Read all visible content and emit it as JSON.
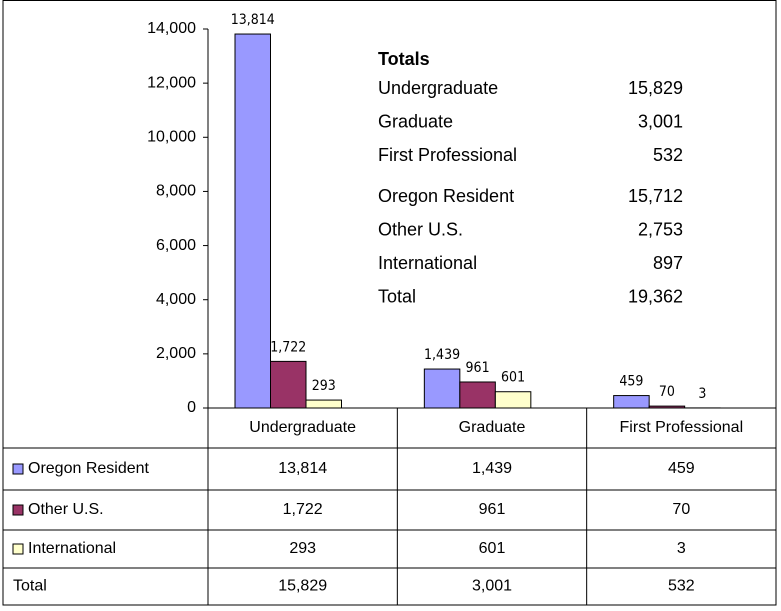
{
  "chart_data": {
    "type": "bar",
    "categories": [
      "Undergraduate",
      "Graduate",
      "First Professional"
    ],
    "series": [
      {
        "name": "Oregon Resident",
        "color": "#9999ff",
        "values": [
          13814,
          1439,
          459
        ],
        "value_labels": [
          "13,814",
          "1,439",
          "459"
        ]
      },
      {
        "name": "Other U.S.",
        "color": "#993366",
        "values": [
          1722,
          961,
          70
        ],
        "value_labels": [
          "1,722",
          "961",
          "70"
        ]
      },
      {
        "name": "International",
        "color": "#ffffcc",
        "values": [
          293,
          601,
          3
        ],
        "value_labels": [
          "293",
          "601",
          "3"
        ]
      }
    ],
    "totals_row": {
      "label": "Total",
      "values": [
        15829,
        3001,
        532
      ],
      "value_labels": [
        "15,829",
        "3,001",
        "532"
      ]
    },
    "ylim": [
      0,
      14000
    ],
    "yticks": [
      0,
      {
        "value": 2000,
        "label": "2,000"
      },
      {
        "value": 4000,
        "label": "4,000"
      },
      {
        "value": 6000,
        "label": "6,000"
      },
      {
        "value": 8000,
        "label": "8,000"
      },
      {
        "value": 10000,
        "label": "10,000"
      },
      {
        "value": 12000,
        "label": "12,000"
      },
      {
        "value": 14000,
        "label": "14,000"
      }
    ],
    "annotation": {
      "title": "Totals",
      "groups": [
        [
          {
            "label": "Undergraduate",
            "value": "15,829"
          },
          {
            "label": "Graduate",
            "value": "3,001"
          },
          {
            "label": "First Professional",
            "value": "532"
          }
        ],
        [
          {
            "label": "Oregon Resident",
            "value": "15,712"
          },
          {
            "label": "Other U.S.",
            "value": "2,753"
          },
          {
            "label": "International",
            "value": "897"
          },
          {
            "label": "Total",
            "value": "19,362"
          }
        ]
      ]
    }
  }
}
